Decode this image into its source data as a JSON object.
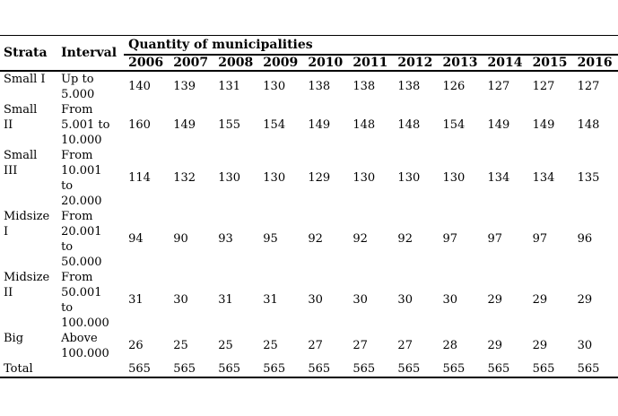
{
  "page": {
    "background_color": "#ffffff",
    "text_color": "#000000",
    "rule_color": "#000000"
  },
  "table": {
    "header": {
      "strata": "Strata",
      "interval": "Interval",
      "quantity_span": "Quantity of municipalities",
      "years": [
        "2006",
        "2007",
        "2008",
        "2009",
        "2010",
        "2011",
        "2012",
        "2013",
        "2014",
        "2015",
        "2016"
      ]
    },
    "rows": [
      {
        "strata": "Small I",
        "interval": "Up to\n5.000",
        "values": [
          "140",
          "139",
          "131",
          "130",
          "138",
          "138",
          "138",
          "126",
          "127",
          "127",
          "127"
        ]
      },
      {
        "strata": "Small\nII",
        "interval": "From\n5.001 to\n10.000",
        "values": [
          "160",
          "149",
          "155",
          "154",
          "149",
          "148",
          "148",
          "154",
          "149",
          "149",
          "148"
        ]
      },
      {
        "strata": "Small\nIII",
        "interval": "From\n10.001\nto\n20.000",
        "values": [
          "114",
          "132",
          "130",
          "130",
          "129",
          "130",
          "130",
          "130",
          "134",
          "134",
          "135"
        ]
      },
      {
        "strata": "Midsize\nI",
        "interval": "From\n20.001\nto\n50.000",
        "values": [
          "94",
          "90",
          "93",
          "95",
          "92",
          "92",
          "92",
          "97",
          "97",
          "97",
          "96"
        ]
      },
      {
        "strata": "Midsize\nII",
        "interval": "From\n50.001\nto\n100.000",
        "values": [
          "31",
          "30",
          "31",
          "31",
          "30",
          "30",
          "30",
          "30",
          "29",
          "29",
          "29"
        ]
      },
      {
        "strata": "Big",
        "interval": "Above\n100.000",
        "values": [
          "26",
          "25",
          "25",
          "25",
          "27",
          "27",
          "27",
          "28",
          "29",
          "29",
          "30"
        ]
      },
      {
        "strata": "Total",
        "interval": "",
        "values": [
          "565",
          "565",
          "565",
          "565",
          "565",
          "565",
          "565",
          "565",
          "565",
          "565",
          "565"
        ]
      }
    ]
  }
}
